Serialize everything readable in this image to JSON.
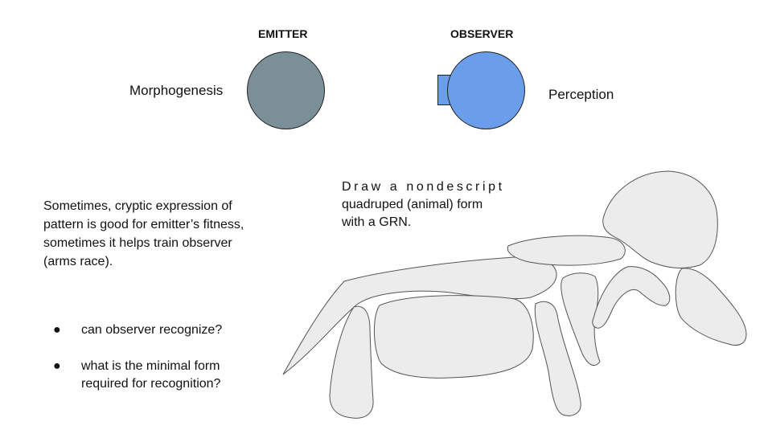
{
  "emitter": {
    "heading": "EMITTER",
    "label": "Morphogenesis",
    "color": "#7a8f98"
  },
  "observer": {
    "heading": "OBSERVER",
    "label": "Perception",
    "color": "#6b9eea"
  },
  "note": "Sometimes, cryptic expression of pattern is good for emitter’s fitness, sometimes it helps train observer (arms race).",
  "instruction": {
    "line1": "Draw a nondescript",
    "line2": "quadruped (animal) form",
    "line3": "with a GRN."
  },
  "questions": [
    "can observer recognize?",
    "what is the minimal form required for recognition?"
  ],
  "bullet_glyph": "●",
  "animal": {
    "fill": "#ececec",
    "stroke": "#555555"
  }
}
